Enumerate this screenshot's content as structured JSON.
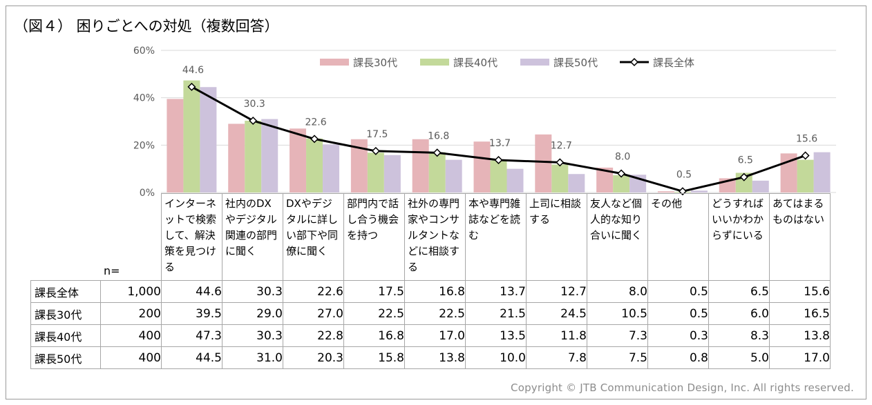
{
  "title": "（図４） 困りごとへの対処（複数回答）",
  "copyright": "Copyright © JTB Communication Design, Inc. All rights reserved.",
  "n_label": "n=",
  "colors": {
    "s30": "#e6b4b8",
    "s40": "#c3d99a",
    "s50": "#cdc2dc",
    "all": "#000000",
    "grid": "#d9d9d9",
    "axis_text": "#595959"
  },
  "chart_data": {
    "type": "bar",
    "ylim": [
      0,
      60
    ],
    "yticks": [
      "0%",
      "20%",
      "40%",
      "60%"
    ],
    "ytick_values": [
      0,
      20,
      40,
      60
    ],
    "grid": true,
    "legend_position": "top",
    "categories": [
      "インターネットで検索して、解決策を見つける",
      "社内のDXやデジタル関連の部門に聞く",
      "DXやデジタルに詳しい部下や同僚に聞く",
      "部門内で話し合う機会を持つ",
      "社外の専門家やコンサルタントなどに相談する",
      "本や専門雑誌などを読む",
      "上司に相談する",
      "友人など個人的な知り合いに聞く",
      "その他",
      "どうすればいいかわからずにいる",
      "あてはまるものはない"
    ],
    "series": [
      {
        "name": "課長30代",
        "type": "bar",
        "values": [
          39.5,
          29.0,
          27.0,
          22.5,
          22.5,
          21.5,
          24.5,
          10.5,
          0.5,
          6.0,
          16.5
        ]
      },
      {
        "name": "課長40代",
        "type": "bar",
        "values": [
          47.3,
          30.3,
          22.8,
          16.8,
          17.0,
          13.5,
          11.8,
          7.3,
          0.3,
          8.3,
          13.8
        ]
      },
      {
        "name": "課長50代",
        "type": "bar",
        "values": [
          44.5,
          31.0,
          20.3,
          15.8,
          13.8,
          10.0,
          7.8,
          7.5,
          0.8,
          5.0,
          17.0
        ]
      },
      {
        "name": "課長全体",
        "type": "line",
        "values": [
          44.6,
          30.3,
          22.6,
          17.5,
          16.8,
          13.7,
          12.7,
          8.0,
          0.5,
          6.5,
          15.6
        ]
      }
    ],
    "data_labels": [
      "44.6",
      "30.3",
      "22.6",
      "17.5",
      "16.8",
      "13.7",
      "12.7",
      "8.0",
      "0.5",
      "6.5",
      "15.6"
    ]
  },
  "table": {
    "headers": [
      "インターネットで検索して、解決策を見つける",
      "社内のDXやデジタル関連の部門に聞く",
      "DXやデジタルに詳しい部下や同僚に聞く",
      "部門内で話し合う機会を持つ",
      "社外の専門家やコンサルタントなどに相談する",
      "本や専門雑誌などを読む",
      "上司に相談する",
      "友人など個人的な知り合いに聞く",
      "その他",
      "どうすればいいかわからずにいる",
      "あてはまるものはない"
    ],
    "rows": [
      {
        "label": "課長全体",
        "n": "1,000",
        "values": [
          "44.6",
          "30.3",
          "22.6",
          "17.5",
          "16.8",
          "13.7",
          "12.7",
          "8.0",
          "0.5",
          "6.5",
          "15.6"
        ]
      },
      {
        "label": "課長30代",
        "n": "200",
        "values": [
          "39.5",
          "29.0",
          "27.0",
          "22.5",
          "22.5",
          "21.5",
          "24.5",
          "10.5",
          "0.5",
          "6.0",
          "16.5"
        ]
      },
      {
        "label": "課長40代",
        "n": "400",
        "values": [
          "47.3",
          "30.3",
          "22.8",
          "16.8",
          "17.0",
          "13.5",
          "11.8",
          "7.3",
          "0.3",
          "8.3",
          "13.8"
        ]
      },
      {
        "label": "課長50代",
        "n": "400",
        "values": [
          "44.5",
          "31.0",
          "20.3",
          "15.8",
          "13.8",
          "10.0",
          "7.8",
          "7.5",
          "0.8",
          "5.0",
          "17.0"
        ]
      }
    ]
  }
}
